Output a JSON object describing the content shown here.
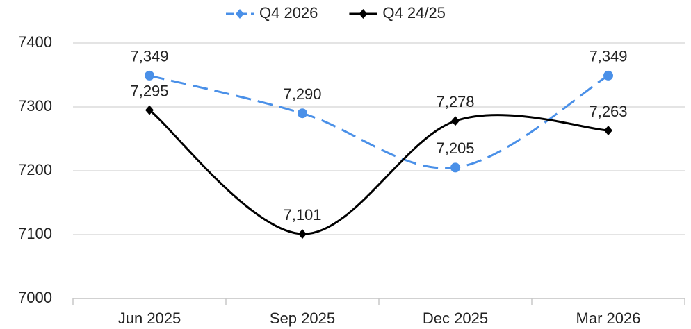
{
  "chart_data": {
    "type": "line",
    "categories": [
      "Jun 2025",
      "Sep 2025",
      "Dec 2025",
      "Mar 2026"
    ],
    "series": [
      {
        "name": "Q4 2026",
        "color": "#4a90e8",
        "dashed": true,
        "values": [
          7349,
          7290,
          7205,
          7349
        ],
        "value_labels": [
          "7,349",
          "7,290",
          "7,205",
          "7,349"
        ]
      },
      {
        "name": "Q4 24/25",
        "color": "#000000",
        "dashed": false,
        "values": [
          7295,
          7101,
          7278,
          7263
        ],
        "value_labels": [
          "7,295",
          "7,101",
          "7,278",
          "7,263"
        ]
      }
    ],
    "ylim": [
      7000,
      7400
    ],
    "yticks": [
      7000,
      7100,
      7200,
      7300,
      7400
    ],
    "grid": true,
    "legend": "top"
  }
}
